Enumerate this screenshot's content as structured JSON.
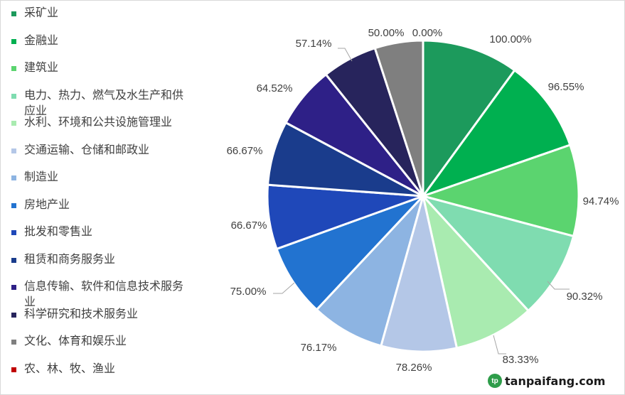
{
  "chart_data": {
    "type": "pie",
    "legend_position": "left",
    "categories": [
      "采矿业",
      "金融业",
      "建筑业",
      "电力、热力、燃气及水生产和供应业",
      "水利、环境和公共设施管理业",
      "交通运输、仓储和邮政业",
      "制造业",
      "房地产业",
      "批发和零售业",
      "租赁和商务服务业",
      "信息传输、软件和信息技术服务业",
      "科学研究和技术服务业",
      "文化、体育和娱乐业",
      "农、林、牧、渔业"
    ],
    "values": [
      100.0,
      96.55,
      94.74,
      90.32,
      83.33,
      78.26,
      76.17,
      75.0,
      66.67,
      66.67,
      64.52,
      57.14,
      50.0,
      0.0
    ],
    "data_labels": [
      "100.00%",
      "96.55%",
      "94.74%",
      "90.32%",
      "83.33%",
      "78.26%",
      "76.17%",
      "75.00%",
      "66.67%",
      "66.67%",
      "64.52%",
      "57.14%",
      "50.00%",
      "0.00%"
    ],
    "colors": [
      "#1c9a5c",
      "#00b050",
      "#5bd46f",
      "#7fdcb0",
      "#a9ebb0",
      "#b4c7e7",
      "#8db4e2",
      "#2273d0",
      "#1f48b9",
      "#1a3c8c",
      "#2e2087",
      "#27245c",
      "#7f7f7f",
      "#c00000"
    ]
  },
  "watermark": {
    "icon": "tp",
    "text": "tanpaifang.com"
  }
}
